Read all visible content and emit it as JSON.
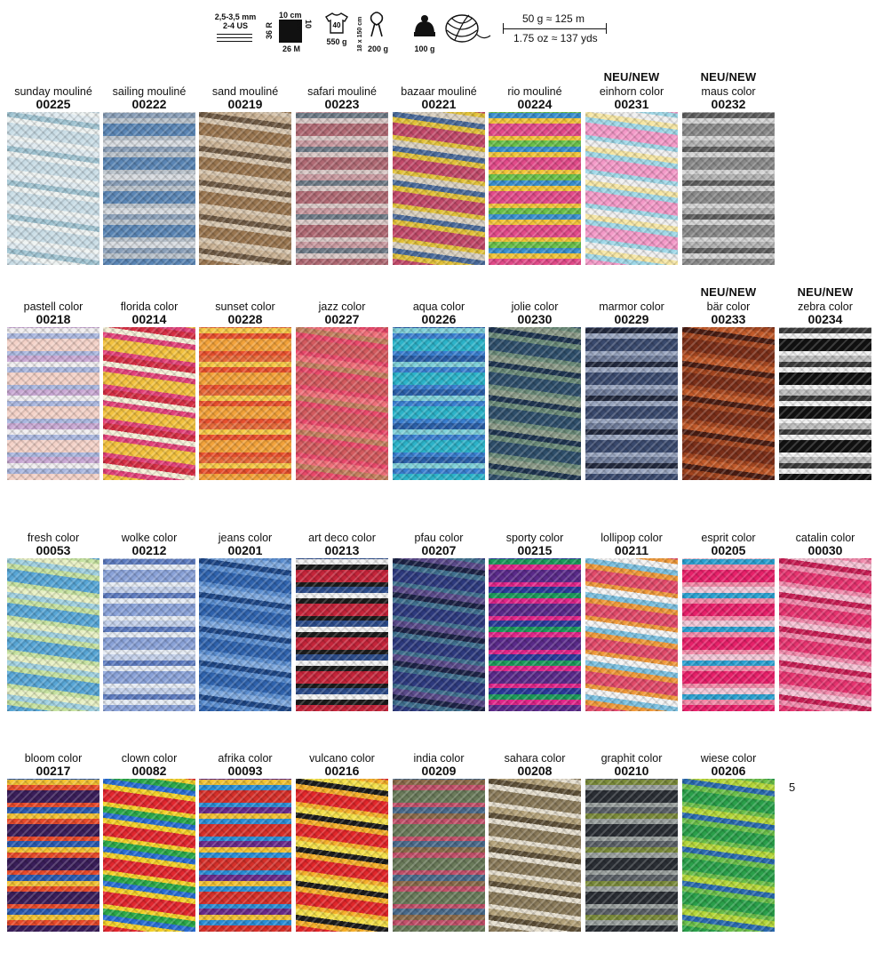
{
  "specs": {
    "needle_mm": "2,5-3,5 mm",
    "needle_us": "2-4 US",
    "gauge_width": "10 cm",
    "gauge_height": "10 cm",
    "gauge_rows": "36 R",
    "gauge_stitches": "26 M",
    "garment_size": "40",
    "garment_weight": "550 g",
    "scarf_size": "18 x 150 cm",
    "scarf_weight": "200 g",
    "hat_weight": "100 g",
    "ratio_metric": "50 g ≈ 125 m",
    "ratio_imperial": "1.75 oz ≈ 137 yds"
  },
  "page_number": "5",
  "rows": [
    [
      {
        "name": "sunday mouliné",
        "code": "00225",
        "new": "",
        "colors": [
          "#c9dde6",
          "#eef3f2",
          "#9fc3d1",
          "#dfeaf0"
        ]
      },
      {
        "name": "sailing mouliné",
        "code": "00222",
        "new": "",
        "colors": [
          "#5b86b5",
          "#b9c2cb",
          "#8a9fb8",
          "#d7dbe0"
        ]
      },
      {
        "name": "sand mouliné",
        "code": "00219",
        "new": "",
        "colors": [
          "#9a7650",
          "#d8c7b0",
          "#6f5a44",
          "#c9b193"
        ]
      },
      {
        "name": "safari mouliné",
        "code": "00223",
        "new": "",
        "colors": [
          "#b06a74",
          "#d9c8c6",
          "#6e7a86",
          "#c99aa0"
        ]
      },
      {
        "name": "bazaar mouliné",
        "code": "00221",
        "new": "",
        "colors": [
          "#c24a6a",
          "#e2c23a",
          "#4a6a9a",
          "#d9d0c0"
        ]
      },
      {
        "name": "rio mouliné",
        "code": "00224",
        "new": "",
        "colors": [
          "#e24b8a",
          "#f2c53a",
          "#3a8fcf",
          "#6ac04a"
        ]
      },
      {
        "name": "einhorn color",
        "code": "00231",
        "new": "NEU/NEW",
        "colors": [
          "#f49ac8",
          "#9fd8e8",
          "#f7e7a4",
          "#f0f0f0"
        ]
      },
      {
        "name": "maus color",
        "code": "00232",
        "new": "NEU/NEW",
        "colors": [
          "#8a8a8a",
          "#d5d5d5",
          "#5e5e5e",
          "#b2b2b2"
        ]
      }
    ],
    [
      {
        "name": "pastell color",
        "code": "00218",
        "new": "",
        "colors": [
          "#f4d2c8",
          "#aab7df",
          "#f0eef0",
          "#c9a9d4"
        ]
      },
      {
        "name": "florida color",
        "code": "00214",
        "new": "",
        "colors": [
          "#f3c23f",
          "#e3427a",
          "#f6f0d8",
          "#d62f44"
        ]
      },
      {
        "name": "sunset color",
        "code": "00228",
        "new": "",
        "colors": [
          "#f3a23a",
          "#e8502e",
          "#f7c948",
          "#e66a3a"
        ]
      },
      {
        "name": "jazz color",
        "code": "00227",
        "new": "",
        "colors": [
          "#d35a5e",
          "#e9486a",
          "#c3805e",
          "#f0707a"
        ]
      },
      {
        "name": "aqua color",
        "code": "00226",
        "new": "",
        "colors": [
          "#2cb3c9",
          "#3a7fd0",
          "#7fd0d8",
          "#2a5fa8"
        ]
      },
      {
        "name": "jolie color",
        "code": "00230",
        "new": "",
        "colors": [
          "#2e4e6a",
          "#6a8a78",
          "#1e3450",
          "#8b9a88"
        ]
      },
      {
        "name": "marmor color",
        "code": "00229",
        "new": "",
        "colors": [
          "#3a4a6e",
          "#9aa6c0",
          "#22293e",
          "#6d7a98"
        ]
      },
      {
        "name": "bär color",
        "code": "00233",
        "new": "NEU/NEW",
        "colors": [
          "#7a2e18",
          "#a3451f",
          "#4a1c12",
          "#c25a2a"
        ]
      },
      {
        "name": "zebra color",
        "code": "00234",
        "new": "NEU/NEW",
        "colors": [
          "#111111",
          "#f0f0f0",
          "#3a3a3a",
          "#bdbdbd"
        ]
      }
    ],
    [
      {
        "name": "fresh color",
        "code": "00053",
        "new": "",
        "colors": [
          "#58a6d6",
          "#c6e2a0",
          "#9fd0e0",
          "#e8f0c4"
        ]
      },
      {
        "name": "wolke color",
        "code": "00212",
        "new": "",
        "colors": [
          "#8aa2d8",
          "#e6ecf4",
          "#5d7bbf",
          "#c3d0ea"
        ]
      },
      {
        "name": "jeans color",
        "code": "00201",
        "new": "",
        "colors": [
          "#2f63ae",
          "#5b8ed0",
          "#1e4787",
          "#7ea8de"
        ]
      },
      {
        "name": "art deco color",
        "code": "00213",
        "new": "",
        "colors": [
          "#c5243a",
          "#1b1b1b",
          "#f2f2f2",
          "#2c4c8a"
        ]
      },
      {
        "name": "pfau color",
        "code": "00207",
        "new": "",
        "colors": [
          "#2d3a7e",
          "#3f6f8e",
          "#1c2346",
          "#5a4a8a"
        ]
      },
      {
        "name": "sporty color",
        "code": "00215",
        "new": "",
        "colors": [
          "#5a2a8a",
          "#e2268a",
          "#1b9a5a",
          "#2a3a9a"
        ]
      },
      {
        "name": "lollipop color",
        "code": "00211",
        "new": "",
        "colors": [
          "#e24a6a",
          "#f09a3a",
          "#7ac0e0",
          "#f4f4f4"
        ]
      },
      {
        "name": "esprit color",
        "code": "00205",
        "new": "",
        "colors": [
          "#e8206a",
          "#f48aa8",
          "#2aa0d0",
          "#f2c8d8"
        ]
      },
      {
        "name": "catalin color",
        "code": "00030",
        "new": "",
        "colors": [
          "#e6336f",
          "#f28aac",
          "#c81e54",
          "#f6c2d4"
        ]
      }
    ],
    [
      {
        "name": "bloom color",
        "code": "00217",
        "new": "",
        "colors": [
          "#3a1e5a",
          "#e84a2a",
          "#f2c234",
          "#2a5ab0"
        ]
      },
      {
        "name": "clown color",
        "code": "00082",
        "new": "",
        "colors": [
          "#e2262e",
          "#f4d22a",
          "#2a6ed6",
          "#2aa84a"
        ]
      },
      {
        "name": "afrika color",
        "code": "00093",
        "new": "",
        "colors": [
          "#d6302a",
          "#2a8ed6",
          "#f2c234",
          "#6a2a8a"
        ]
      },
      {
        "name": "vulcano color",
        "code": "00216",
        "new": "",
        "colors": [
          "#e2262a",
          "#f6b02a",
          "#1b1b1b",
          "#f4e04a"
        ]
      },
      {
        "name": "india color",
        "code": "00209",
        "new": "",
        "colors": [
          "#6a7a5a",
          "#c2506a",
          "#8a6a4a",
          "#4a6a8a"
        ]
      },
      {
        "name": "sahara color",
        "code": "00208",
        "new": "",
        "colors": [
          "#8a7a5a",
          "#e6dfcf",
          "#5e5038",
          "#b4a27a"
        ]
      },
      {
        "name": "graphit color",
        "code": "00210",
        "new": "",
        "colors": [
          "#2a2e34",
          "#9aa09e",
          "#7a8a3a",
          "#5a6066"
        ]
      },
      {
        "name": "wiese color",
        "code": "00206",
        "new": "",
        "colors": [
          "#2aa04a",
          "#6cc04a",
          "#2a6ab0",
          "#b6d83a"
        ]
      }
    ]
  ]
}
